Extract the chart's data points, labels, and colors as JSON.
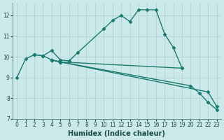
{
  "background_color": "#cce9ea",
  "grid_color": "#aacdd4",
  "line_color": "#1a7a6e",
  "marker_style": "D",
  "marker_size": 2.5,
  "line_width": 1.0,
  "xlabel": "Humidex (Indice chaleur)",
  "xlabel_fontsize": 7,
  "tick_fontsize": 5.5,
  "xlim": [
    -0.5,
    23.5
  ],
  "ylim": [
    7.0,
    12.6
  ],
  "yticks": [
    7,
    8,
    9,
    10,
    11,
    12
  ],
  "xticks": [
    0,
    1,
    2,
    3,
    4,
    5,
    6,
    7,
    8,
    9,
    10,
    11,
    12,
    13,
    14,
    15,
    16,
    17,
    18,
    19,
    20,
    21,
    22,
    23
  ],
  "curve1_x": [
    0,
    1,
    2,
    3,
    4,
    5,
    6,
    7,
    10,
    11,
    12,
    13,
    14,
    15,
    16,
    17,
    18,
    19
  ],
  "curve1_y": [
    9.0,
    9.9,
    10.1,
    10.05,
    10.3,
    9.85,
    9.8,
    10.2,
    11.35,
    11.75,
    12.0,
    11.7,
    12.27,
    12.27,
    12.27,
    11.1,
    10.45,
    9.45
  ],
  "curve2_x": [
    2,
    3,
    4,
    5,
    19
  ],
  "curve2_y": [
    10.1,
    10.05,
    9.85,
    9.75,
    9.45
  ],
  "curve3_x": [
    4,
    5,
    22,
    23
  ],
  "curve3_y": [
    9.85,
    9.75,
    8.3,
    7.6
  ],
  "curve4_x": [
    4,
    5,
    20,
    21,
    22,
    23
  ],
  "curve4_y": [
    9.85,
    9.75,
    8.6,
    8.25,
    7.8,
    7.45
  ]
}
